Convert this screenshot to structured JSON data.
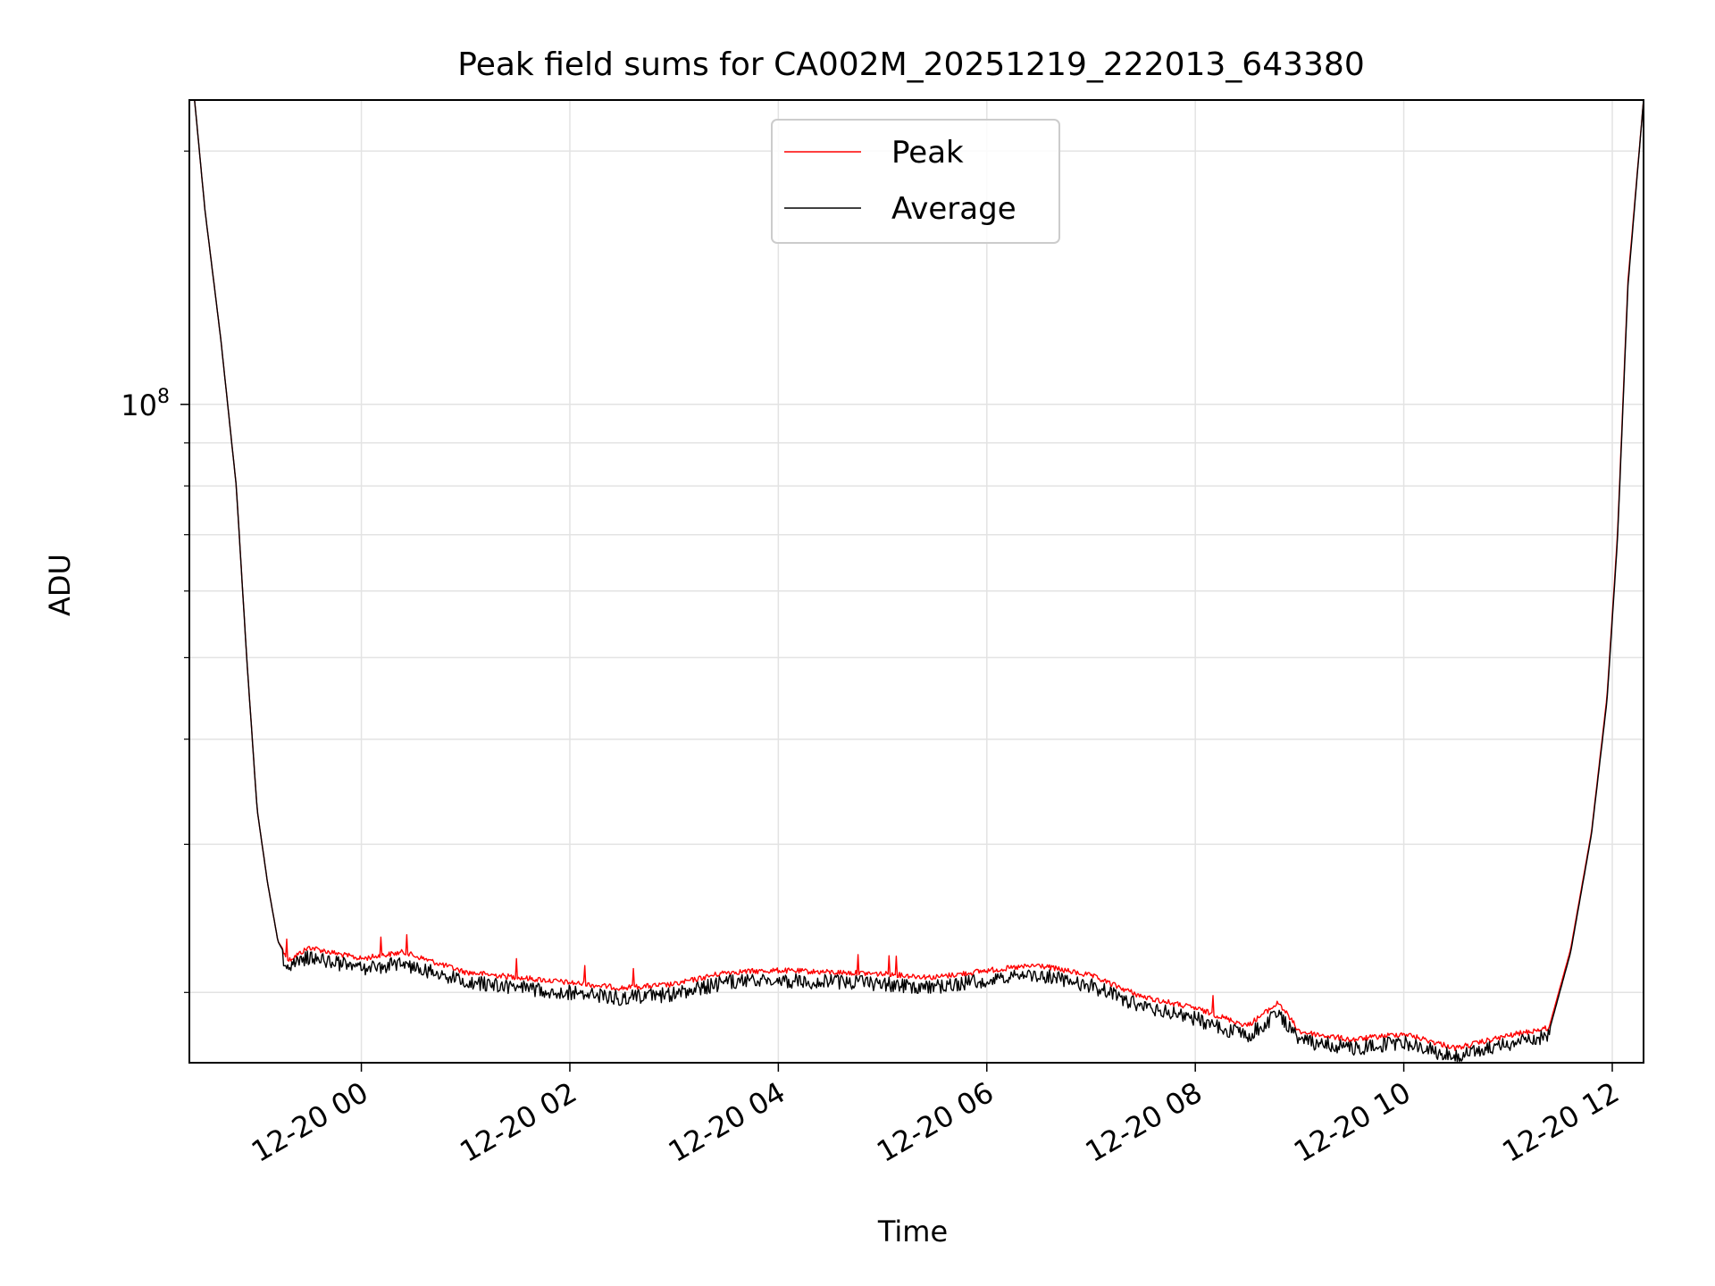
{
  "chart_data": {
    "type": "line",
    "title": "Peak field sums for CA002M_20251219_222013_643380",
    "xlabel": "Time",
    "ylabel": "ADU",
    "yscale": "log",
    "xlim_hours": [
      -1.65,
      12.3
    ],
    "ylim": [
      16500000,
      230000000
    ],
    "x_tick_hours": [
      0,
      2,
      4,
      6,
      8,
      10,
      12
    ],
    "x_tick_labels": [
      "12-20 00",
      "12-20 02",
      "12-20 04",
      "12-20 06",
      "12-20 08",
      "12-20 10",
      "12-20 12"
    ],
    "y_major_ticks": [
      {
        "value": 100000000,
        "base": "10",
        "exp": "8"
      }
    ],
    "y_minor_ticks": [
      20000000,
      30000000,
      40000000,
      50000000,
      60000000,
      70000000,
      80000000,
      90000000,
      200000000
    ],
    "grid": true,
    "legend": {
      "position": "top-center",
      "entries": [
        "Peak",
        "Average"
      ]
    },
    "series": [
      {
        "name": "Peak",
        "color": "#ff0000",
        "points": [
          [
            -1.6,
            230000000
          ],
          [
            -1.5,
            170000000
          ],
          [
            -1.35,
            120000000
          ],
          [
            -1.2,
            80000000
          ],
          [
            -1.1,
            50000000
          ],
          [
            -1.0,
            33000000
          ],
          [
            -0.9,
            27000000
          ],
          [
            -0.8,
            23000000
          ],
          [
            -0.7,
            22000000
          ],
          [
            -0.5,
            22800000
          ],
          [
            -0.3,
            22500000
          ],
          [
            0,
            22100000
          ],
          [
            0.4,
            22500000
          ],
          [
            1.0,
            21300000
          ],
          [
            2.0,
            20700000
          ],
          [
            2.5,
            20400000
          ],
          [
            3.0,
            20600000
          ],
          [
            3.5,
            21300000
          ],
          [
            4.0,
            21400000
          ],
          [
            4.5,
            21300000
          ],
          [
            5.0,
            21200000
          ],
          [
            5.5,
            21000000
          ],
          [
            6.0,
            21400000
          ],
          [
            6.5,
            21700000
          ],
          [
            7.0,
            21100000
          ],
          [
            7.5,
            19900000
          ],
          [
            8.0,
            19300000
          ],
          [
            8.5,
            18400000
          ],
          [
            8.8,
            19600000
          ],
          [
            9.0,
            18100000
          ],
          [
            9.5,
            17700000
          ],
          [
            10.0,
            18000000
          ],
          [
            10.5,
            17300000
          ],
          [
            11.0,
            17900000
          ],
          [
            11.4,
            18300000
          ],
          [
            11.6,
            22500000
          ],
          [
            11.8,
            31000000
          ],
          [
            11.95,
            45000000
          ],
          [
            12.05,
            70000000
          ],
          [
            12.15,
            140000000
          ],
          [
            12.3,
            230000000
          ]
        ]
      },
      {
        "name": "Average",
        "color": "#000000",
        "points": [
          [
            -1.6,
            230000000
          ],
          [
            -1.5,
            170000000
          ],
          [
            -1.35,
            120000000
          ],
          [
            -1.2,
            80000000
          ],
          [
            -1.1,
            50000000
          ],
          [
            -1.0,
            33000000
          ],
          [
            -0.9,
            27000000
          ],
          [
            -0.8,
            23000000
          ],
          [
            -0.7,
            21800000
          ],
          [
            -0.5,
            22500000
          ],
          [
            -0.3,
            22200000
          ],
          [
            0,
            21800000
          ],
          [
            0.4,
            22100000
          ],
          [
            1.0,
            21000000
          ],
          [
            2.0,
            20400000
          ],
          [
            2.5,
            20100000
          ],
          [
            3.0,
            20300000
          ],
          [
            3.5,
            21000000
          ],
          [
            4.0,
            21100000
          ],
          [
            4.5,
            21000000
          ],
          [
            5.0,
            20900000
          ],
          [
            5.5,
            20700000
          ],
          [
            6.0,
            21100000
          ],
          [
            6.5,
            21400000
          ],
          [
            7.0,
            20800000
          ],
          [
            7.5,
            19600000
          ],
          [
            8.0,
            19000000
          ],
          [
            8.5,
            18100000
          ],
          [
            8.8,
            19300000
          ],
          [
            9.0,
            17900000
          ],
          [
            9.5,
            17500000
          ],
          [
            10.0,
            17800000
          ],
          [
            10.5,
            17100000
          ],
          [
            11.0,
            17700000
          ],
          [
            11.4,
            18100000
          ],
          [
            11.6,
            22300000
          ],
          [
            11.8,
            30800000
          ],
          [
            11.95,
            44500000
          ],
          [
            12.05,
            69000000
          ],
          [
            12.15,
            138000000
          ],
          [
            12.3,
            230000000
          ]
        ]
      }
    ]
  }
}
